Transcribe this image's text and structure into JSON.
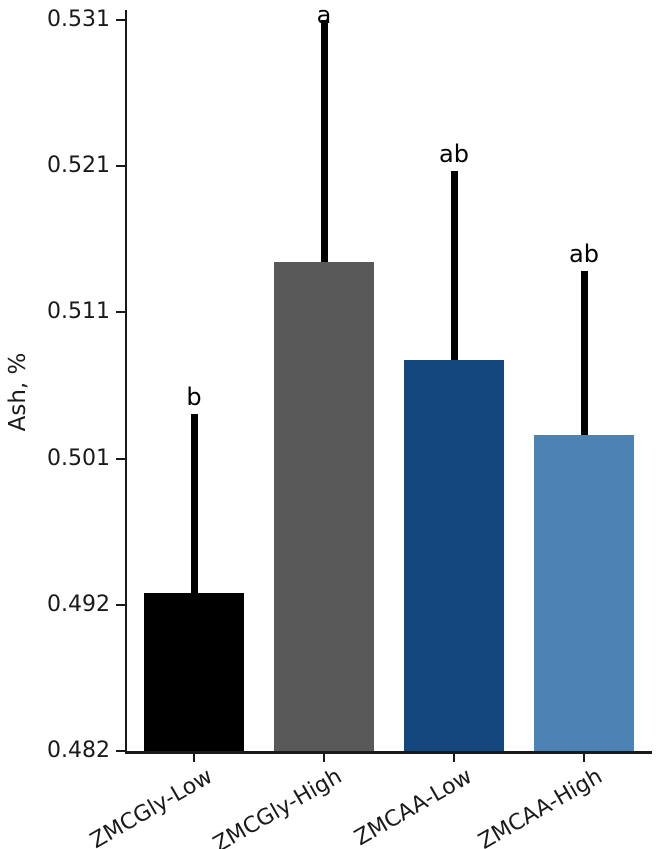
{
  "chart_data": {
    "type": "bar",
    "title": "",
    "xlabel": "",
    "ylabel": "Ash, %",
    "categories": [
      "ZMCGly-Low",
      "ZMCGly-High",
      "ZMCAA-Low",
      "ZMCAA-High"
    ],
    "values": [
      0.4926,
      0.5148,
      0.5082,
      0.5032
    ],
    "errors_plus": [
      0.012,
      0.0162,
      0.0127,
      0.011
    ],
    "sig_letters": [
      "b",
      "a",
      "ab",
      "ab"
    ],
    "bar_colors": [
      "#000000",
      "#595959",
      "#14477e",
      "#4d82b4"
    ],
    "error_bar_color": "#000000",
    "ytick_labels": [
      "0.531",
      "0.521",
      "0.511",
      "0.501",
      "0.492",
      "0.482"
    ],
    "ylim": [
      0.482,
      0.531
    ],
    "grid": false,
    "legend_position": "none"
  }
}
